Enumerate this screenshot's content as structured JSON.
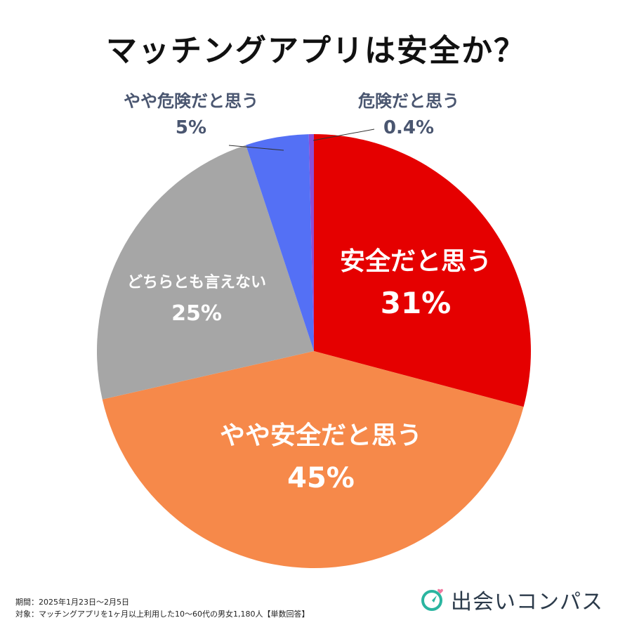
{
  "title": "マッチングアプリは安全か？",
  "chart_data": {
    "type": "pie",
    "start_angle_deg": 0,
    "direction": "clockwise",
    "slices": [
      {
        "key": "safe",
        "label": "安全だと思う",
        "value": 31,
        "value_label": "31%",
        "color": "#e50000"
      },
      {
        "key": "somewhat-safe",
        "label": "やや安全だと思う",
        "value": 45,
        "value_label": "45%",
        "color": "#f6894a"
      },
      {
        "key": "neither",
        "label": "どちらとも言えない",
        "value": 25,
        "value_label": "25%",
        "color": "#a6a6a6"
      },
      {
        "key": "somewhat-danger",
        "label": "やや危険だと思う",
        "value": 5,
        "value_label": "5%",
        "color": "#5470f5"
      },
      {
        "key": "danger",
        "label": "危険だと思う",
        "value": 0.4,
        "value_label": "0.4%",
        "color": "#8a4fd8"
      }
    ]
  },
  "footnote": {
    "period": "期間：2025年1月23日〜2月5日",
    "target": "対象：マッチングアプリを1ヶ月以上利用した10〜60代の男女1,180人【単数回答】"
  },
  "brand": {
    "name": "出会いコンパス",
    "icon": "compass-heart-icon",
    "color": "#2ab5a0",
    "heart_color": "#f07aa0"
  }
}
